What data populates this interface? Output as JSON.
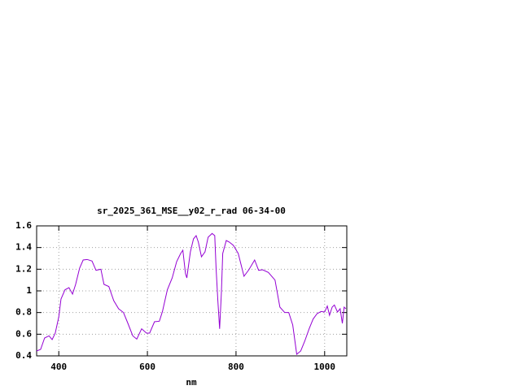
{
  "chart_data": {
    "type": "line",
    "title": "sr_2025_361_MSE__y02_r_rad 06-34-00",
    "x_label": "nm",
    "xlim": [
      350,
      1050
    ],
    "xticks": [
      400,
      600,
      800,
      1000
    ],
    "ylim": [
      0.4,
      1.6
    ],
    "yticks": [
      0.4,
      0.6,
      0.8,
      1,
      1.2,
      1.4,
      1.6
    ],
    "grid": true,
    "series": [
      {
        "color": "#9400d3",
        "x": [
          350,
          359,
          368,
          378,
          385,
          392,
          400,
          405,
          414,
          423,
          431,
          438,
          447,
          455,
          464,
          475,
          484,
          495,
          502,
          513,
          524,
          535,
          546,
          556,
          567,
          576,
          587,
          598,
          605,
          616,
          627,
          634,
          645,
          656,
          666,
          675,
          680,
          686,
          689,
          697,
          704,
          710,
          715,
          722,
          730,
          737,
          746,
          752,
          755,
          759,
          763,
          767,
          770,
          778,
          785,
          794,
          805,
          818,
          829,
          842,
          851,
          860,
          873,
          888,
          899,
          910,
          919,
          928,
          937,
          946,
          955,
          965,
          974,
          983,
          992,
          1000,
          1006,
          1011,
          1017,
          1022,
          1029,
          1035,
          1040,
          1044,
          1048
        ],
        "values": [
          0.445,
          0.46,
          0.565,
          0.585,
          0.55,
          0.61,
          0.76,
          0.925,
          1.01,
          1.03,
          0.97,
          1.06,
          1.21,
          1.285,
          1.29,
          1.275,
          1.19,
          1.2,
          1.06,
          1.04,
          0.91,
          0.835,
          0.8,
          0.7,
          0.585,
          0.555,
          0.65,
          0.61,
          0.61,
          0.715,
          0.72,
          0.81,
          1.01,
          1.12,
          1.27,
          1.345,
          1.375,
          1.157,
          1.12,
          1.36,
          1.48,
          1.51,
          1.45,
          1.315,
          1.36,
          1.495,
          1.53,
          1.51,
          1.21,
          0.91,
          0.65,
          0.985,
          1.345,
          1.465,
          1.45,
          1.42,
          1.345,
          1.135,
          1.195,
          1.285,
          1.19,
          1.195,
          1.17,
          1.1,
          0.85,
          0.8,
          0.8,
          0.685,
          0.415,
          0.445,
          0.535,
          0.65,
          0.74,
          0.79,
          0.81,
          0.805,
          0.86,
          0.775,
          0.85,
          0.87,
          0.805,
          0.835,
          0.7,
          0.85,
          0.835
        ]
      }
    ]
  }
}
